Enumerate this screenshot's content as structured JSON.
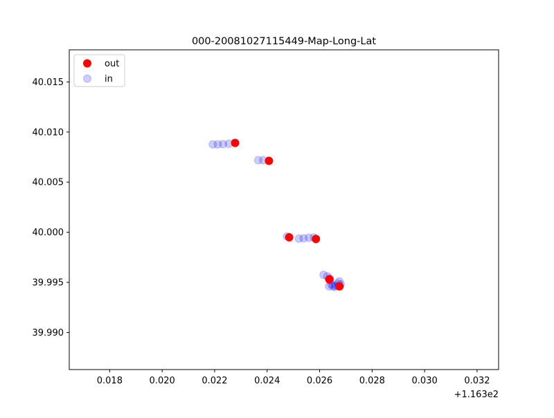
{
  "chart_data": {
    "type": "scatter",
    "title": "000-20081027115449-Map-Long-Lat",
    "xlabel": "",
    "ylabel": "",
    "x_offset_label": "+1.163e2",
    "xlim": [
      116.31646,
      116.33282
    ],
    "ylim": [
      39.9863,
      40.0182
    ],
    "x_ticks": [
      116.318,
      116.32,
      116.322,
      116.324,
      116.326,
      116.328,
      116.33,
      116.332
    ],
    "x_tick_labels": [
      "0.018",
      "0.020",
      "0.022",
      "0.024",
      "0.026",
      "0.028",
      "0.030",
      "0.032"
    ],
    "y_ticks": [
      39.99,
      39.995,
      40.0,
      40.005,
      40.01,
      40.015
    ],
    "y_tick_labels": [
      "39.990",
      "39.995",
      "40.000",
      "40.005",
      "40.010",
      "40.015"
    ],
    "grid": false,
    "legend": {
      "position": "top-left"
    },
    "series": [
      {
        "name": "in",
        "color": "#0000ff",
        "alpha": 0.2,
        "points": [
          [
            116.32193,
            40.00877
          ],
          [
            116.32212,
            40.00877
          ],
          [
            116.32232,
            40.00879
          ],
          [
            116.32254,
            40.00883
          ],
          [
            116.32366,
            40.00719
          ],
          [
            116.32385,
            40.00719
          ],
          [
            116.32476,
            39.99958
          ],
          [
            116.32521,
            39.99937
          ],
          [
            116.32539,
            39.99939
          ],
          [
            116.32559,
            39.99945
          ],
          [
            116.32578,
            39.99947
          ],
          [
            116.32615,
            39.99575
          ],
          [
            116.32629,
            39.9956
          ],
          [
            116.32639,
            39.9954
          ],
          [
            116.3264,
            39.9952
          ],
          [
            116.32645,
            39.9948
          ],
          [
            116.32636,
            39.9946
          ],
          [
            116.3265,
            39.9946
          ],
          [
            116.3266,
            39.9947
          ],
          [
            116.3267,
            39.9949
          ],
          [
            116.32675,
            39.9951
          ],
          [
            116.3268,
            39.9948
          ],
          [
            116.32672,
            39.9946
          ],
          [
            116.32658,
            39.99455
          ]
        ]
      },
      {
        "name": "out",
        "color": "#ff0000",
        "points": [
          [
            116.32278,
            40.00891
          ],
          [
            116.32407,
            40.00713
          ],
          [
            116.32484,
            39.9995
          ],
          [
            116.32586,
            39.99933
          ],
          [
            116.32637,
            39.9953
          ],
          [
            116.32676,
            39.9946
          ]
        ]
      }
    ]
  }
}
